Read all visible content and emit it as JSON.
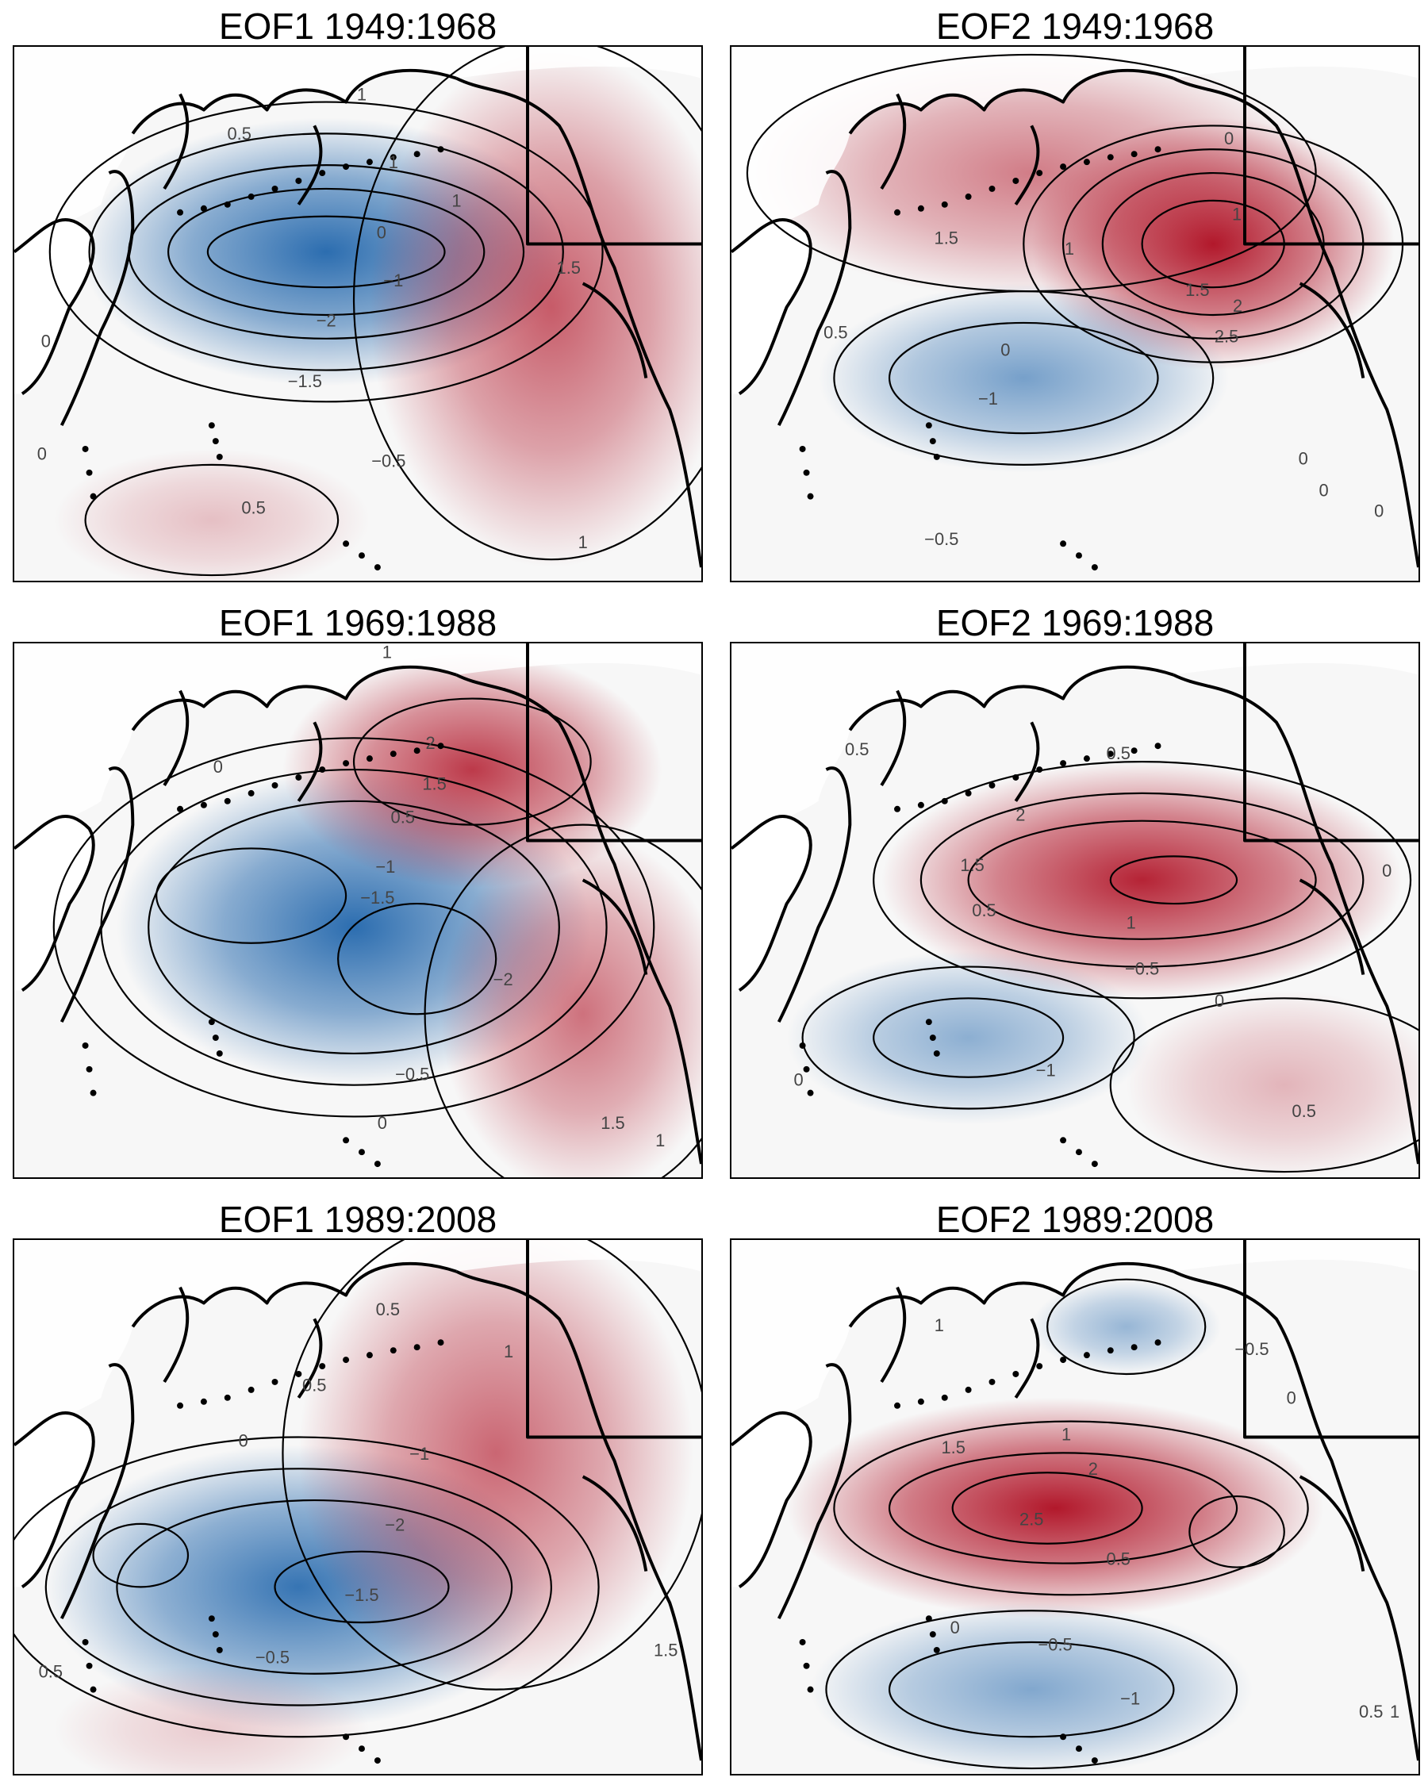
{
  "panels": [
    {
      "title": "EOF1 1949:1968",
      "labels": [
        "0.5",
        "1",
        "1",
        "1",
        "0",
        "1.5",
        "−1",
        "−2",
        "−1.5",
        "−0.5",
        "0.5",
        "0",
        "0",
        "1"
      ],
      "blobs": [
        {
          "sign": "neg",
          "intensity": 0.95
        },
        {
          "sign": "pos",
          "intensity": 0.7
        },
        {
          "sign": "pos",
          "intensity": 0.25
        }
      ]
    },
    {
      "title": "EOF2 1949:1968",
      "labels": [
        "0",
        "1",
        "1.5",
        "1",
        "1.5",
        "2",
        "2.5",
        "0.5",
        "0",
        "−1",
        "−0.5",
        "0",
        "0",
        "0"
      ],
      "blobs": [
        {
          "sign": "pos",
          "intensity": 1.0
        },
        {
          "sign": "pos",
          "intensity": 0.55
        },
        {
          "sign": "neg",
          "intensity": 0.6
        }
      ]
    },
    {
      "title": "EOF1 1969:1988",
      "labels": [
        "1",
        "2",
        "1.5",
        "0.5",
        "0",
        "−1",
        "−1.5",
        "−2",
        "−0.5",
        "0",
        "1.5",
        "1"
      ],
      "blobs": [
        {
          "sign": "neg",
          "intensity": 0.95
        },
        {
          "sign": "pos",
          "intensity": 0.85
        },
        {
          "sign": "pos",
          "intensity": 0.6
        }
      ]
    },
    {
      "title": "EOF2 1969:1988",
      "labels": [
        "0.5",
        "0.5",
        "2",
        "1.5",
        "0.5",
        "1",
        "−0.5",
        "0",
        "−1",
        "0",
        "0.5",
        "0"
      ],
      "blobs": [
        {
          "sign": "pos",
          "intensity": 0.95
        },
        {
          "sign": "neg",
          "intensity": 0.5
        },
        {
          "sign": "pos",
          "intensity": 0.3
        }
      ]
    },
    {
      "title": "EOF1 1989:2008",
      "labels": [
        "0.5",
        "1",
        "0.5",
        "0",
        "−1",
        "−2",
        "−1.5",
        "−0.5",
        "0.5",
        "1.5"
      ],
      "blobs": [
        {
          "sign": "neg",
          "intensity": 0.9
        },
        {
          "sign": "pos",
          "intensity": 0.65
        },
        {
          "sign": "pos",
          "intensity": 0.2
        }
      ]
    },
    {
      "title": "EOF2 1989:2008",
      "labels": [
        "1",
        "−0.5",
        "0",
        "1",
        "1.5",
        "2",
        "2.5",
        "0.5",
        "0",
        "−0.5",
        "−1",
        "0.5",
        "1"
      ],
      "blobs": [
        {
          "sign": "pos",
          "intensity": 1.0
        },
        {
          "sign": "neg",
          "intensity": 0.55
        },
        {
          "sign": "neg",
          "intensity": 0.45
        }
      ]
    }
  ],
  "colors": {
    "negative": "#2166ac",
    "positive": "#b2182b",
    "neutral": "#f7f7f7",
    "land": "#ffffff",
    "contour": "#000000"
  }
}
